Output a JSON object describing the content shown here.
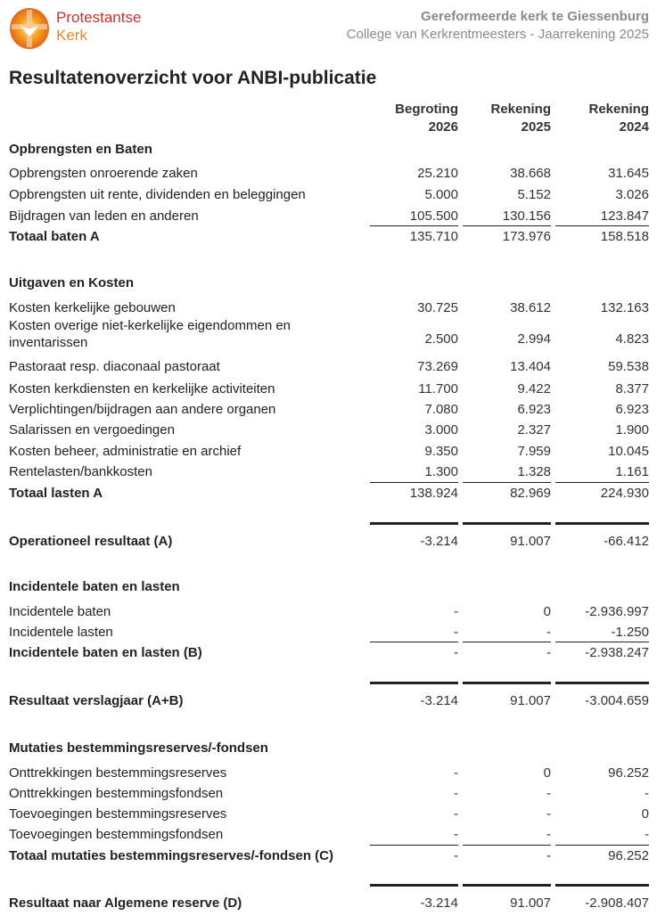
{
  "logo": {
    "line1": "Protestantse",
    "line2": "Kerk",
    "colors": {
      "red": "#c8312f",
      "orange": "#e8891f"
    }
  },
  "header": {
    "organization": "Gereformeerde kerk te Giessenburg",
    "subtitle": "College van Kerkrentmeesters - Jaarrekening 2025"
  },
  "title": "Resultatenoverzicht voor ANBI-publicatie",
  "columns": [
    {
      "line1": "Begroting",
      "line2": "2026"
    },
    {
      "line1": "Rekening",
      "line2": "2025"
    },
    {
      "line1": "Rekening",
      "line2": "2024"
    }
  ],
  "rows": [
    {
      "type": "head",
      "label": "Opbrengsten en Baten"
    },
    {
      "type": "item",
      "label": "Opbrengsten onroerende zaken",
      "values": [
        "25.210",
        "38.668",
        "31.645"
      ]
    },
    {
      "type": "item",
      "label": "Opbrengsten uit rente, dividenden en beleggingen",
      "values": [
        "5.000",
        "5.152",
        "3.026"
      ]
    },
    {
      "type": "item",
      "label": "Bijdragen van leden en anderen",
      "values": [
        "105.500",
        "130.156",
        "123.847"
      ]
    },
    {
      "type": "total",
      "label": "Totaal baten A",
      "values": [
        "135.710",
        "173.976",
        "158.518"
      ]
    },
    {
      "type": "head",
      "label": "Uitgaven en Kosten"
    },
    {
      "type": "item",
      "label": "Kosten kerkelijke gebouwen",
      "values": [
        "30.725",
        "38.612",
        "132.163"
      ]
    },
    {
      "type": "item2",
      "label": "Kosten overige niet-kerkelijke eigendommen en inventarissen",
      "values": [
        "2.500",
        "2.994",
        "4.823"
      ]
    },
    {
      "type": "item",
      "label": "Pastoraat resp. diaconaal pastoraat",
      "values": [
        "73.269",
        "13.404",
        "59.538"
      ]
    },
    {
      "type": "item",
      "label": "Kosten kerkdiensten en kerkelijke activiteiten",
      "values": [
        "11.700",
        "9.422",
        "8.377"
      ]
    },
    {
      "type": "item",
      "label": "Verplichtingen/bijdragen aan andere organen",
      "values": [
        "7.080",
        "6.923",
        "6.923"
      ]
    },
    {
      "type": "item",
      "label": "Salarissen en vergoedingen",
      "values": [
        "3.000",
        "2.327",
        "1.900"
      ]
    },
    {
      "type": "item",
      "label": "Kosten beheer, administratie en archief",
      "values": [
        "9.350",
        "7.959",
        "10.045"
      ]
    },
    {
      "type": "item",
      "label": "Rentelasten/bankkosten",
      "values": [
        "1.300",
        "1.328",
        "1.161"
      ]
    },
    {
      "type": "total",
      "label": "Totaal lasten A",
      "values": [
        "138.924",
        "82.969",
        "224.930"
      ]
    },
    {
      "type": "result",
      "label": "Operationeel resultaat (A)",
      "values": [
        "-3.214",
        "91.007",
        "-66.412"
      ]
    },
    {
      "type": "head",
      "label": "Incidentele baten en lasten"
    },
    {
      "type": "item",
      "label": "Incidentele baten",
      "values": [
        "-",
        "0",
        "-2.936.997"
      ]
    },
    {
      "type": "item",
      "label": "Incidentele lasten",
      "values": [
        "-",
        "-",
        "-1.250"
      ]
    },
    {
      "type": "total",
      "label": "Incidentele baten en lasten (B)",
      "values": [
        "-",
        "-",
        "-2.938.247"
      ]
    },
    {
      "type": "result",
      "label": "Resultaat verslagjaar (A+B)",
      "values": [
        "-3.214",
        "91.007",
        "-3.004.659"
      ]
    },
    {
      "type": "head",
      "label": "Mutaties bestemmingsreserves/-fondsen"
    },
    {
      "type": "item",
      "label": "Onttrekkingen bestemmingsreserves",
      "values": [
        "-",
        "0",
        "96.252"
      ]
    },
    {
      "type": "item",
      "label": "Onttrekkingen bestemmingsfondsen",
      "values": [
        "-",
        "-",
        "-"
      ]
    },
    {
      "type": "item",
      "label": "Toevoegingen bestemmingsreserves",
      "values": [
        "-",
        "-",
        "0"
      ]
    },
    {
      "type": "item",
      "label": "Toevoegingen bestemmingsfondsen",
      "values": [
        "-",
        "-",
        "-"
      ]
    },
    {
      "type": "total",
      "label": "Totaal mutaties bestemmingsreserves/-fondsen (C)",
      "values": [
        "-",
        "-",
        "96.252"
      ]
    },
    {
      "type": "result",
      "label": "Resultaat naar Algemene reserve (D)",
      "values": [
        "-3.214",
        "91.007",
        "-2.908.407"
      ]
    }
  ]
}
